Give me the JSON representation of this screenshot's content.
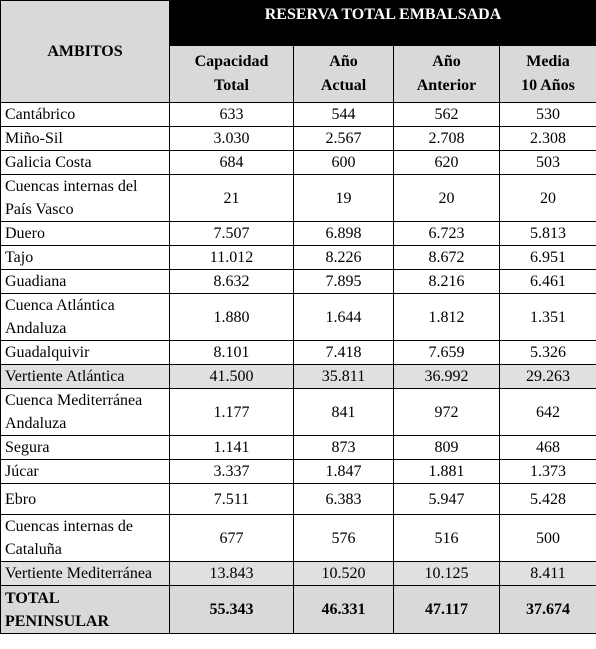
{
  "header": {
    "ambitos": "AMBITOS",
    "reserva": "RESERVA TOTAL EMBALSADA",
    "col_capacidad_l1": "Capacidad",
    "col_capacidad_l2": "Total",
    "col_actual_l1": "Año",
    "col_actual_l2": "Actual",
    "col_anterior_l1": "Año",
    "col_anterior_l2": "Anterior",
    "col_media_l1": "Media",
    "col_media_l2": "10 Años"
  },
  "rows": [
    {
      "name": "Cantábrico",
      "capacidad": "633",
      "actual": "544",
      "anterior": "562",
      "media": "530"
    },
    {
      "name": "Miño-Sil",
      "capacidad": "3.030",
      "actual": "2.567",
      "anterior": "2.708",
      "media": "2.308"
    },
    {
      "name": "Galicia Costa",
      "capacidad": "684",
      "actual": "600",
      "anterior": "620",
      "media": "503"
    },
    {
      "name": "Cuencas internas del País Vasco",
      "capacidad": "21",
      "actual": "19",
      "anterior": "20",
      "media": "20"
    },
    {
      "name": "Duero",
      "capacidad": "7.507",
      "actual": "6.898",
      "anterior": "6.723",
      "media": "5.813"
    },
    {
      "name": "Tajo",
      "capacidad": "11.012",
      "actual": "8.226",
      "anterior": "8.672",
      "media": "6.951"
    },
    {
      "name": "Guadiana",
      "capacidad": "8.632",
      "actual": "7.895",
      "anterior": "8.216",
      "media": "6.461"
    },
    {
      "name": "Cuenca Atlántica Andaluza",
      "capacidad": "1.880",
      "actual": "1.644",
      "anterior": "1.812",
      "media": "1.351"
    },
    {
      "name": "Guadalquivir",
      "capacidad": "8.101",
      "actual": "7.418",
      "anterior": "7.659",
      "media": "5.326"
    },
    {
      "name": "Vertiente Atlántica",
      "capacidad": "41.500",
      "actual": "35.811",
      "anterior": "36.992",
      "media": "29.263"
    },
    {
      "name": "Cuenca Mediterránea Andaluza",
      "capacidad": "1.177",
      "actual": "841",
      "anterior": "972",
      "media": "642"
    },
    {
      "name": "Segura",
      "capacidad": "1.141",
      "actual": "873",
      "anterior": "809",
      "media": "468"
    },
    {
      "name": "Júcar",
      "capacidad": "3.337",
      "actual": "1.847",
      "anterior": "1.881",
      "media": "1.373"
    },
    {
      "name": "Ebro",
      "capacidad": "7.511",
      "actual": "6.383",
      "anterior": "5.947",
      "media": "5.428"
    },
    {
      "name": "Cuencas internas de Cataluña",
      "capacidad": "677",
      "actual": "576",
      "anterior": "516",
      "media": "500"
    },
    {
      "name": "Vertiente Mediterránea",
      "capacidad": "13.843",
      "actual": "10.520",
      "anterior": "10.125",
      "media": "8.411"
    },
    {
      "name": "TOTAL PENINSULAR",
      "capacidad": "55.343",
      "actual": "46.331",
      "anterior": "47.117",
      "media": "37.674"
    }
  ],
  "colors": {
    "header_black": "#000000",
    "header_gray": "#d9d9d9",
    "subtotal_gray": "#e0e0e0"
  }
}
